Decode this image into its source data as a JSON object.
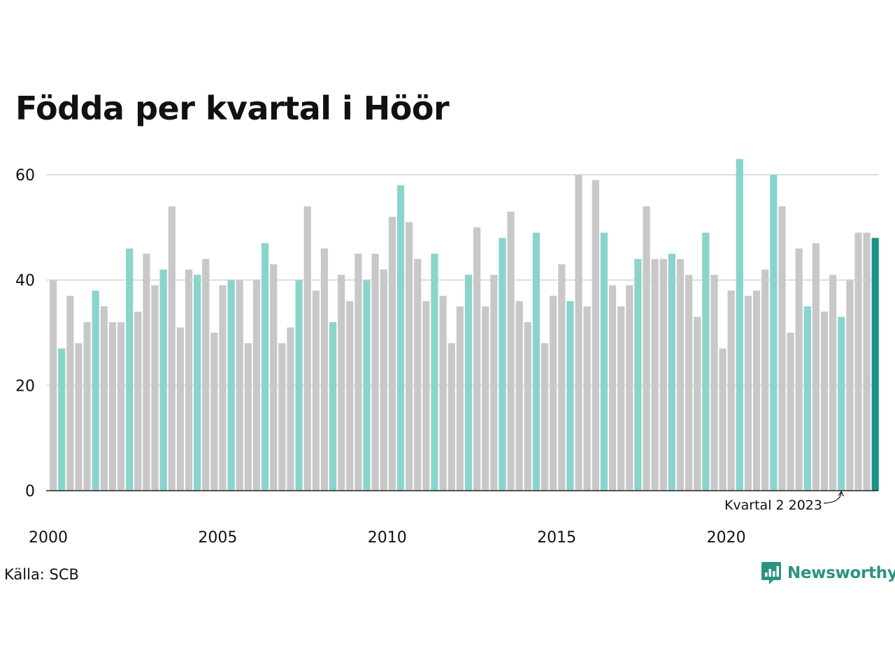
{
  "title": "Födda per kvartal i Höör",
  "source": "Källa: SCB",
  "brand": "Newsworthy",
  "colors": {
    "bar_default": "#c8c8c8",
    "bar_highlight": "#8ad4cc",
    "bar_current": "#1a9484",
    "grid": "#dddddd",
    "brand": "#2a9384"
  },
  "icons": [
    "newsworthy-logo-icon"
  ],
  "chart_data": {
    "type": "bar",
    "title": "Födda per kvartal i Höör",
    "xlabel": "",
    "ylabel": "",
    "ylim": [
      0,
      65
    ],
    "y_ticks": [
      0,
      20,
      40,
      60
    ],
    "x_tick_labels": [
      "2000",
      "2005",
      "2010",
      "2015",
      "2020"
    ],
    "grid": true,
    "highlight_rule": "quarter 2 of each year highlighted",
    "annotation": "Kvartal 2 2023",
    "annotation_index": 93,
    "current_index": 97,
    "start_year": 2000,
    "values": [
      40,
      27,
      37,
      28,
      32,
      38,
      35,
      32,
      32,
      46,
      34,
      45,
      39,
      42,
      54,
      31,
      42,
      41,
      44,
      30,
      39,
      40,
      40,
      28,
      40,
      47,
      43,
      28,
      31,
      40,
      54,
      38,
      46,
      32,
      41,
      36,
      45,
      40,
      45,
      42,
      52,
      58,
      51,
      44,
      36,
      45,
      37,
      28,
      35,
      41,
      50,
      35,
      41,
      48,
      53,
      36,
      32,
      49,
      28,
      37,
      43,
      36,
      60,
      35,
      59,
      49,
      39,
      35,
      39,
      44,
      54,
      44,
      44,
      45,
      44,
      41,
      33,
      49,
      41,
      27,
      38,
      63,
      37,
      38,
      42,
      60,
      54,
      30,
      46,
      35,
      47,
      34,
      41,
      33,
      40,
      49,
      49,
      48
    ]
  }
}
